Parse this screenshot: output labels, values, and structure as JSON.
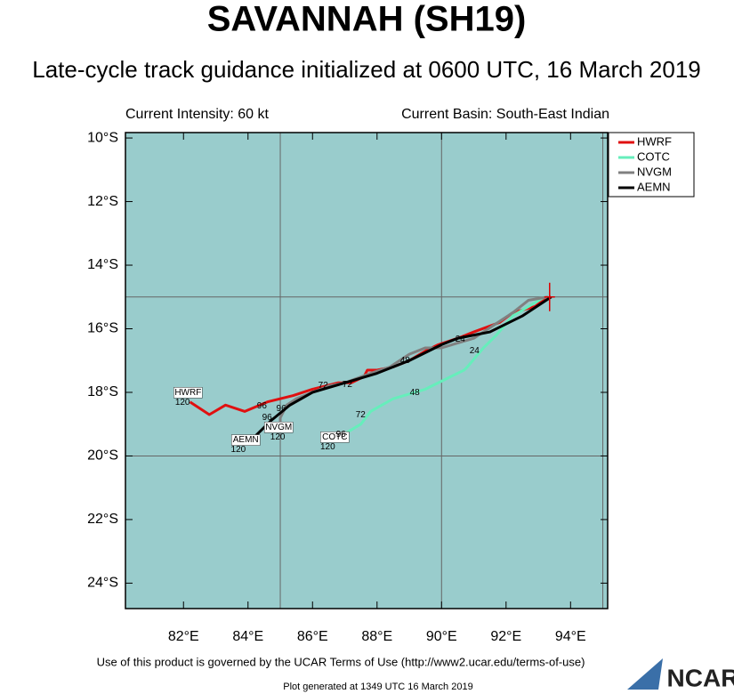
{
  "chart_data": {
    "type": "track",
    "title": "SAVANNAH (SH19)",
    "subtitle": "Late-cycle track guidance initialized at 0600 UTC, 16 March 2019",
    "info_left": "Current Intensity: 60 kt",
    "info_right": "Current Basin: South-East Indian",
    "footer": "Use of this product is governed by the UCAR Terms of Use (http://www2.ucar.edu/terms-of-use)",
    "generated": "Plot generated at 1349 UTC  16 March 2019",
    "logo": "NCAR",
    "xlim": [
      80.2,
      95.15
    ],
    "ylim": [
      -24.8,
      -9.83
    ],
    "xticks": [
      {
        "value": 82,
        "label": "82°E"
      },
      {
        "value": 84,
        "label": "84°E"
      },
      {
        "value": 86,
        "label": "86°E"
      },
      {
        "value": 88,
        "label": "88°E"
      },
      {
        "value": 90,
        "label": "90°E"
      },
      {
        "value": 92,
        "label": "92°E"
      },
      {
        "value": 94,
        "label": "94°E"
      }
    ],
    "yticks": [
      {
        "value": -10,
        "label": "10°S"
      },
      {
        "value": -12,
        "label": "12°S"
      },
      {
        "value": -14,
        "label": "14°S"
      },
      {
        "value": -16,
        "label": "16°S"
      },
      {
        "value": -18,
        "label": "18°S"
      },
      {
        "value": -20,
        "label": "20°S"
      },
      {
        "value": -22,
        "label": "22°S"
      },
      {
        "value": -24,
        "label": "24°S"
      }
    ],
    "grid_x": [
      85,
      90,
      95
    ],
    "grid_y": [
      -15,
      -20
    ],
    "background": "#99cccc",
    "legend": "upper right",
    "current_position": {
      "x": 93.35,
      "y": -15.0,
      "color": "#dd0000"
    },
    "series": [
      {
        "name": "HWRF",
        "color": "#e01010",
        "x": [
          93.3,
          92.9,
          92.2,
          91.8,
          91.0,
          90.5,
          89.9,
          89.5,
          89.0,
          88.5,
          88.0,
          87.7,
          87.6,
          87.2,
          86.8,
          86.0,
          85.4,
          84.6,
          83.9,
          83.3,
          82.8,
          82.2
        ],
        "values": [
          -15.0,
          -15.3,
          -15.5,
          -15.8,
          -16.1,
          -16.3,
          -16.5,
          -16.7,
          -17.0,
          -17.2,
          -17.3,
          -17.3,
          -17.5,
          -17.7,
          -17.7,
          -17.9,
          -18.1,
          -18.3,
          -18.6,
          -18.4,
          -18.7,
          -18.3
        ]
      },
      {
        "name": "COTC",
        "color": "#66eebb",
        "x": [
          93.2,
          92.2,
          91.7,
          91.3,
          90.8,
          90.7,
          89.5,
          88.5,
          87.8,
          87.5,
          87.0,
          86.8
        ],
        "values": [
          -15.0,
          -15.6,
          -16.2,
          -16.6,
          -17.2,
          -17.3,
          -17.9,
          -18.2,
          -18.6,
          -19.0,
          -19.3,
          -19.4
        ]
      },
      {
        "name": "NVGM",
        "color": "#808080",
        "x": [
          93.3,
          92.7,
          92.2,
          91.6,
          91.0,
          90.0,
          89.5,
          89.0,
          88.4,
          87.8,
          87.0,
          86.5,
          86.0,
          85.5,
          85.2,
          85.0,
          85.0
        ],
        "values": [
          -15.0,
          -15.1,
          -15.5,
          -15.9,
          -16.3,
          -16.6,
          -16.6,
          -16.8,
          -17.2,
          -17.4,
          -17.7,
          -17.8,
          -18.0,
          -18.2,
          -18.4,
          -18.8,
          -19.1
        ]
      },
      {
        "name": "AEMN",
        "color": "#000000",
        "x": [
          93.4,
          92.5,
          91.5,
          91.0,
          90.5,
          90.0,
          89.0,
          88.0,
          87.0,
          86.0,
          85.3,
          84.7,
          84.2,
          84.0
        ],
        "values": [
          -15.0,
          -15.6,
          -16.1,
          -16.2,
          -16.3,
          -16.5,
          -17.0,
          -17.4,
          -17.7,
          -18.0,
          -18.4,
          -18.9,
          -19.4,
          -19.6
        ]
      }
    ],
    "annotations": [
      {
        "text": "HWRF",
        "x": 82.14,
        "y": -18.01,
        "box": true
      },
      {
        "text": "120",
        "x": 81.97,
        "y": -18.32
      },
      {
        "text": "AEMN",
        "x": 83.93,
        "y": -19.5,
        "box": true
      },
      {
        "text": "120",
        "x": 83.7,
        "y": -19.8
      },
      {
        "text": "NVGM",
        "x": 84.95,
        "y": -19.1,
        "box": true
      },
      {
        "text": "120",
        "x": 84.92,
        "y": -19.41
      },
      {
        "text": "COTC",
        "x": 86.69,
        "y": -19.41,
        "box": true
      },
      {
        "text": "120",
        "x": 86.47,
        "y": -19.72
      },
      {
        "text": "24",
        "x": 90.58,
        "y": -16.33
      },
      {
        "text": "24",
        "x": 91.02,
        "y": -16.69
      },
      {
        "text": "48",
        "x": 89.17,
        "y": -18.01
      },
      {
        "text": "48",
        "x": 88.87,
        "y": -17.0
      },
      {
        "text": "72",
        "x": 87.49,
        "y": -18.71
      },
      {
        "text": "72",
        "x": 87.08,
        "y": -17.76
      },
      {
        "text": "72",
        "x": 86.33,
        "y": -17.79
      },
      {
        "text": "96",
        "x": 86.88,
        "y": -19.33
      },
      {
        "text": "96",
        "x": 84.43,
        "y": -18.43
      },
      {
        "text": "96",
        "x": 84.59,
        "y": -18.8
      },
      {
        "text": "96",
        "x": 85.03,
        "y": -18.52
      }
    ]
  }
}
